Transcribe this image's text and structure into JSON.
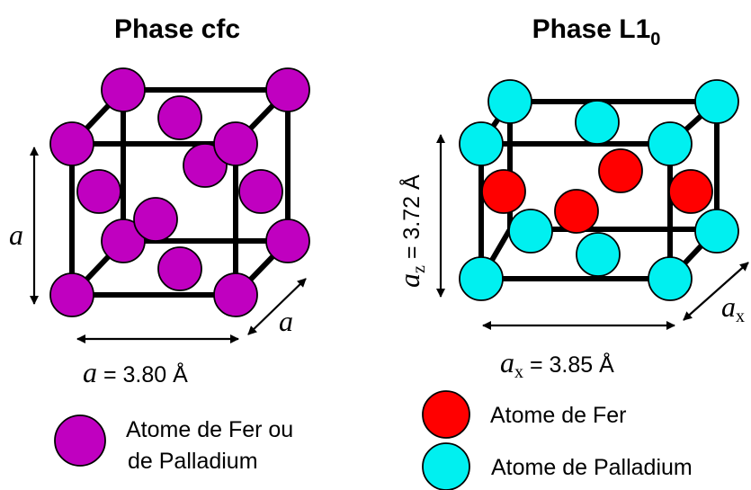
{
  "colors": {
    "magenta": "#C000C0",
    "red": "#FF0000",
    "cyan": "#00F0F0"
  },
  "left": {
    "title": "Phase cfc",
    "label_a_vertical": "a",
    "label_a_depth": "a",
    "param_symbol": "a",
    "param_value": " = 3.80 Å",
    "legend_line1": "Atome de Fer ou",
    "legend_line2": "de Palladium"
  },
  "right": {
    "title_main": "Phase L1",
    "title_sub": "0",
    "az_symbol": "a",
    "az_sub": "z",
    "az_value": " = 3.72 Å",
    "ax_symbol": "a",
    "ax_sub": "x",
    "ax_value": " = 3.85 Å",
    "depth_symbol": "a",
    "depth_sub": "x",
    "legend_fe": "Atome de Fer",
    "legend_pd": "Atome de Palladium"
  }
}
